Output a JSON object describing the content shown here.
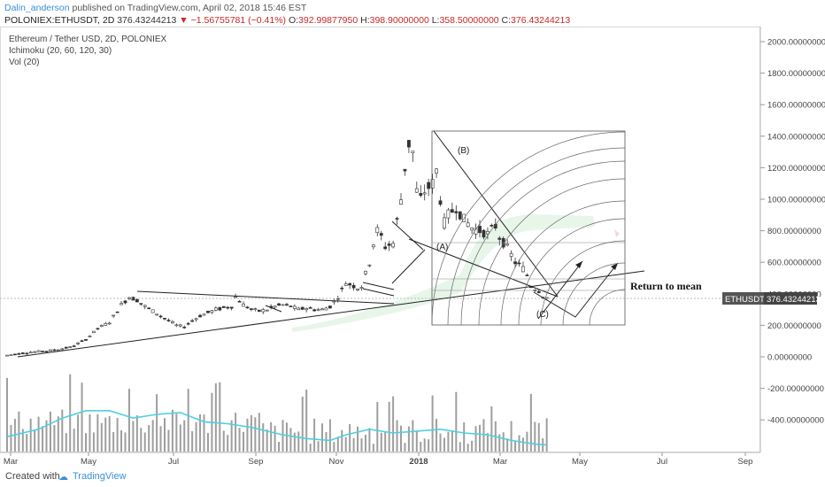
{
  "header": {
    "author": "Dalin_anderson",
    "published": "published on TradingView.com, April 02, 2018 15:46 EST",
    "symbol": "POLONIEX:ETHUSDT, 2D",
    "last": "376.43244213",
    "down_arrow": "▼",
    "change": "−1.56755781 (−0.41%)",
    "o_label": "O:",
    "o_value": "392.99877950",
    "h_label": "H:",
    "h_value": "398.90000000",
    "l_label": "L:",
    "l_value": "358.50000000",
    "c_label": "C:",
    "c_value": "376.43244213"
  },
  "legend": {
    "title": "Ethereum / Tether USD, 2D, POLONIEX",
    "indicator1": "Ichimoku (20, 60, 120, 30)",
    "indicator2": "Vol (20)"
  },
  "annotations": {
    "return_to_mean": "Return to mean",
    "wave_a": "(A)",
    "wave_b": "(B)",
    "wave_c": "(C)"
  },
  "price_tag": {
    "symbol": "ETHUSDT",
    "value": "376.43244213"
  },
  "footer": {
    "created_with": "Created with",
    "brand": "TradingView"
  },
  "colors": {
    "up": "#ffffff",
    "down": "#333333",
    "volume_ma": "#4dd0e1",
    "cloud": "#e8f5e9",
    "accent": "#3a8fd9"
  },
  "chart_data": {
    "type": "candlestick",
    "x_tick_labels": [
      "Mar",
      "May",
      "Jul",
      "Sep",
      "Nov",
      "2018",
      "Mar",
      "May",
      "Jul",
      "Sep"
    ],
    "y_tick_labels": [
      "2000.00000000",
      "1800.00000000",
      "1600.00000000",
      "1400.00000000",
      "1200.00000000",
      "1000.00000000",
      "800.00000000",
      "600.00000000",
      "400.00000000",
      "200.00000000",
      "0.00000000",
      "-200.00000000",
      "-400.00000000"
    ],
    "ylim": [
      -600,
      2100
    ],
    "last_price": 376.43244213,
    "price_path": [
      [
        0,
        10
      ],
      [
        6,
        30
      ],
      [
        11,
        40
      ],
      [
        16,
        60
      ],
      [
        20,
        110
      ],
      [
        23,
        180
      ],
      [
        26,
        220
      ],
      [
        29,
        330
      ],
      [
        31,
        380
      ],
      [
        33,
        360
      ],
      [
        35,
        320
      ],
      [
        37,
        290
      ],
      [
        39,
        260
      ],
      [
        41,
        230
      ],
      [
        43,
        200
      ],
      [
        45,
        190
      ],
      [
        47,
        230
      ],
      [
        49,
        260
      ],
      [
        51,
        280
      ],
      [
        53,
        300
      ],
      [
        55,
        310
      ],
      [
        57,
        320
      ],
      [
        58,
        380
      ],
      [
        60,
        330
      ],
      [
        62,
        300
      ],
      [
        64,
        290
      ],
      [
        66,
        300
      ],
      [
        68,
        320
      ],
      [
        70,
        330
      ],
      [
        72,
        320
      ],
      [
        74,
        300
      ],
      [
        76,
        310
      ],
      [
        78,
        300
      ],
      [
        80,
        300
      ],
      [
        82,
        320
      ],
      [
        84,
        380
      ],
      [
        86,
        470
      ],
      [
        87,
        460
      ],
      [
        89,
        440
      ],
      [
        90,
        450
      ],
      [
        92,
        600
      ],
      [
        93,
        720
      ],
      [
        94,
        800
      ],
      [
        95,
        760
      ],
      [
        96,
        700
      ],
      [
        98,
        720
      ],
      [
        99,
        860
      ],
      [
        100,
        1000
      ],
      [
        101,
        1200
      ],
      [
        102,
        1350
      ],
      [
        103,
        1300
      ],
      [
        104,
        1050
      ],
      [
        105,
        1000
      ],
      [
        106,
        1050
      ],
      [
        108,
        1100
      ],
      [
        109,
        1180
      ],
      [
        110,
        1000
      ],
      [
        111,
        850
      ],
      [
        112,
        900
      ],
      [
        114,
        950
      ],
      [
        116,
        870
      ],
      [
        118,
        820
      ],
      [
        120,
        800
      ],
      [
        122,
        780
      ],
      [
        124,
        830
      ],
      [
        125,
        760
      ],
      [
        127,
        690
      ],
      [
        129,
        600
      ],
      [
        131,
        560
      ],
      [
        132,
        520
      ],
      [
        133,
        450
      ],
      [
        135,
        420
      ],
      [
        136,
        390
      ],
      [
        137,
        376
      ]
    ],
    "volume_ma": [
      [
        0,
        40
      ],
      [
        8,
        60
      ],
      [
        14,
        90
      ],
      [
        20,
        110
      ],
      [
        26,
        110
      ],
      [
        32,
        90
      ],
      [
        38,
        100
      ],
      [
        44,
        105
      ],
      [
        50,
        80
      ],
      [
        56,
        75
      ],
      [
        62,
        65
      ],
      [
        70,
        45
      ],
      [
        76,
        35
      ],
      [
        82,
        30
      ],
      [
        86,
        45
      ],
      [
        92,
        60
      ],
      [
        98,
        50
      ],
      [
        104,
        55
      ],
      [
        110,
        60
      ],
      [
        116,
        50
      ],
      [
        122,
        45
      ],
      [
        128,
        30
      ],
      [
        134,
        20
      ],
      [
        137,
        18
      ]
    ]
  }
}
